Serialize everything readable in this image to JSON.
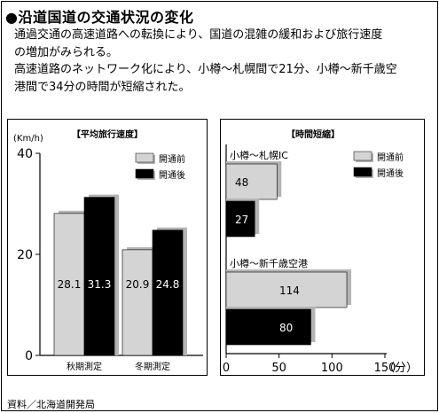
{
  "title": "●沿道国道の交通状況の変化",
  "description": [
    "通過交通の高速道路への転換により、国道の混雑の緩和および旅行速度",
    "の増加がみられる。",
    "高速道路のネットワーク化により、小樽～札幌間で21分、小樽～新千歳空",
    "港間で34分の時間が短縮された。"
  ],
  "source": "資料／北海道開発局",
  "colors": {
    "before": "#d4d4d4",
    "after": "#000000",
    "shadow": "#b4b4b4"
  },
  "chart_data": [
    {
      "type": "bar",
      "title": "【平均旅行速度】",
      "ylabel": "(Km/h)",
      "categories": [
        "秋期測定",
        "冬期測定"
      ],
      "series": [
        {
          "name": "開通前",
          "values": [
            28.1,
            20.9
          ]
        },
        {
          "name": "開通後",
          "values": [
            31.3,
            24.8
          ]
        }
      ],
      "ylim": [
        0,
        40
      ],
      "yticks": [
        "0",
        "20",
        "40"
      ],
      "legend": "top-right",
      "grid": false
    },
    {
      "type": "bar",
      "orientation": "horizontal",
      "title": "【時間短縮】",
      "categories": [
        "小樽～札幌IC",
        "小樽～新千歳空港"
      ],
      "series": [
        {
          "name": "開通前",
          "values": [
            48,
            114
          ]
        },
        {
          "name": "開通後",
          "values": [
            27,
            80
          ]
        }
      ],
      "xlim": [
        0,
        150
      ],
      "xticks": [
        "0",
        "50",
        "100",
        "150"
      ],
      "xunit": "（分）",
      "legend": "top-right",
      "grid": false
    }
  ]
}
